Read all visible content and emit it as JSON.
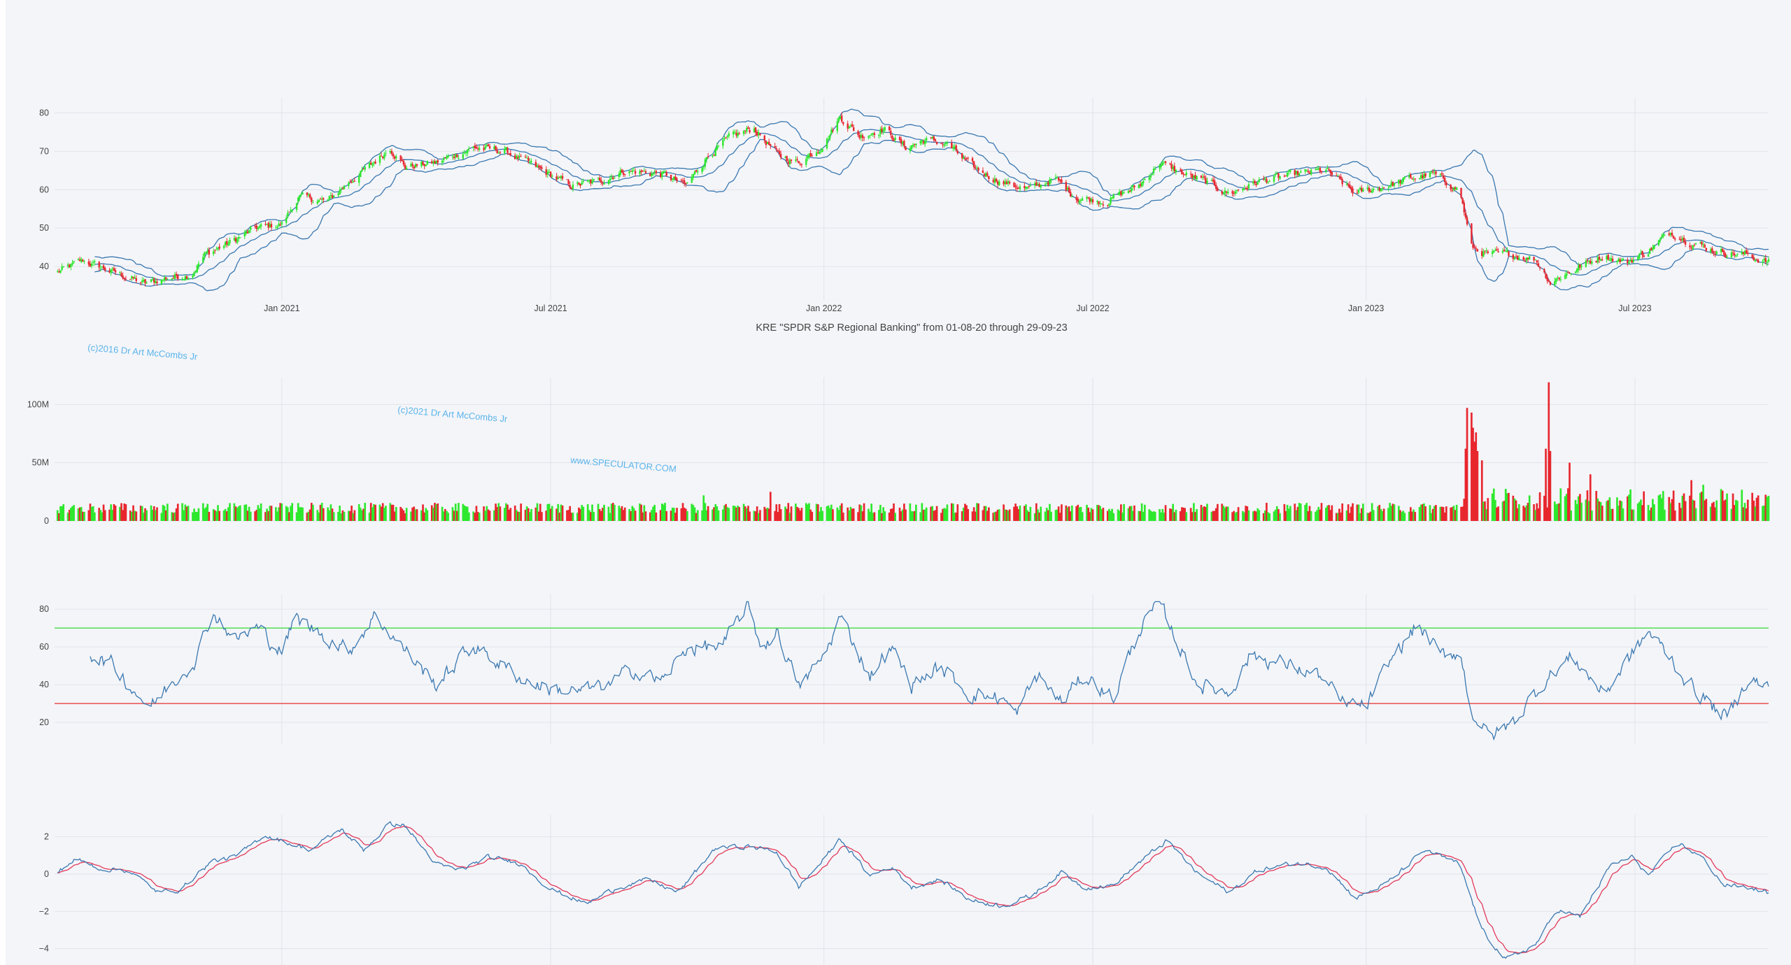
{
  "colors": {
    "background": "#f4f5f9",
    "grid": "#e2e4ea",
    "up": "#2ee82e",
    "down": "#e8262e",
    "line": "#3a78b0",
    "signal": "#e23a5a",
    "rsi_upper": "#5fe05f",
    "rsi_lower": "#e85a5a",
    "watermark": "#5ab4ea"
  },
  "watermarks": [
    "(c)2016 Dr Art McCombs Jr",
    "(c)2021 Dr Art McCombs Jr",
    "www.SPECULATOR.COM"
  ],
  "chart_data": [
    {
      "type": "candlestick",
      "title": "KRE \"SPDR S&P Regional Banking\" from 01-08-20 through 29-09-23",
      "x_range": [
        "2020-08-01",
        "2023-09-29"
      ],
      "x_ticks": [
        [
          "2021-01-01",
          "Jan 2021"
        ],
        [
          "2021-07-01",
          "Jul 2021"
        ],
        [
          "2022-01-01",
          "Jan 2022"
        ],
        [
          "2022-07-01",
          "Jul 2022"
        ],
        [
          "2023-01-01",
          "Jan 2023"
        ],
        [
          "2023-07-01",
          "Jul 2023"
        ]
      ],
      "ylim": [
        32,
        83
      ],
      "y_ticks": [
        40,
        50,
        60,
        70,
        80
      ],
      "overlay": "Bollinger Bands (upper, middle, lower)",
      "close_anchors": [
        [
          "2020-08-03",
          38.5
        ],
        [
          "2020-08-20",
          41.5
        ],
        [
          "2020-09-10",
          38.5
        ],
        [
          "2020-10-01",
          35.5
        ],
        [
          "2020-10-15",
          37.0
        ],
        [
          "2020-11-01",
          38.0
        ],
        [
          "2020-11-10",
          43.0
        ],
        [
          "2020-12-01",
          47.0
        ],
        [
          "2020-12-15",
          50.0
        ],
        [
          "2021-01-01",
          51.0
        ],
        [
          "2021-01-12",
          58.0
        ],
        [
          "2021-02-01",
          57.0
        ],
        [
          "2021-02-15",
          62.0
        ],
        [
          "2021-03-01",
          66.0
        ],
        [
          "2021-03-15",
          71.0
        ],
        [
          "2021-03-25",
          66.0
        ],
        [
          "2021-04-15",
          67.0
        ],
        [
          "2021-05-10",
          71.0
        ],
        [
          "2021-06-01",
          70.0
        ],
        [
          "2021-06-20",
          66.0
        ],
        [
          "2021-07-15",
          61.0
        ],
        [
          "2021-08-01",
          62.0
        ],
        [
          "2021-08-20",
          65.0
        ],
        [
          "2021-09-15",
          64.0
        ],
        [
          "2021-09-30",
          61.0
        ],
        [
          "2021-10-15",
          69.0
        ],
        [
          "2021-11-01",
          74.0
        ],
        [
          "2021-11-15",
          76.0
        ],
        [
          "2021-12-01",
          69.0
        ],
        [
          "2021-12-15",
          67.0
        ],
        [
          "2022-01-01",
          72.0
        ],
        [
          "2022-01-12",
          79.0
        ],
        [
          "2022-01-25",
          74.0
        ],
        [
          "2022-02-10",
          76.0
        ],
        [
          "2022-02-25",
          71.0
        ],
        [
          "2022-03-10",
          73.0
        ],
        [
          "2022-03-25",
          72.0
        ],
        [
          "2022-04-10",
          66.0
        ],
        [
          "2022-05-01",
          62.0
        ],
        [
          "2022-05-20",
          60.0
        ],
        [
          "2022-06-05",
          63.0
        ],
        [
          "2022-06-20",
          58.0
        ],
        [
          "2022-07-10",
          57.0
        ],
        [
          "2022-08-01",
          61.0
        ],
        [
          "2022-08-15",
          67.0
        ],
        [
          "2022-09-01",
          64.0
        ],
        [
          "2022-09-15",
          62.0
        ],
        [
          "2022-10-01",
          59.0
        ],
        [
          "2022-10-20",
          62.0
        ],
        [
          "2022-11-15",
          64.0
        ],
        [
          "2022-12-05",
          65.0
        ],
        [
          "2022-12-25",
          59.0
        ],
        [
          "2023-01-15",
          61.0
        ],
        [
          "2023-02-01",
          63.0
        ],
        [
          "2023-02-15",
          64.0
        ],
        [
          "2023-03-05",
          60.0
        ],
        [
          "2023-03-13",
          45.0
        ],
        [
          "2023-03-25",
          43.0
        ],
        [
          "2023-04-10",
          43.0
        ],
        [
          "2023-04-25",
          42.0
        ],
        [
          "2023-05-05",
          36.0
        ],
        [
          "2023-05-20",
          39.0
        ],
        [
          "2023-06-10",
          43.0
        ],
        [
          "2023-06-25",
          41.0
        ],
        [
          "2023-07-10",
          44.0
        ],
        [
          "2023-07-25",
          49.0
        ],
        [
          "2023-08-10",
          46.0
        ],
        [
          "2023-08-25",
          44.0
        ],
        [
          "2023-09-15",
          43.0
        ],
        [
          "2023-09-29",
          41.0
        ]
      ]
    },
    {
      "type": "bar",
      "name": "volume",
      "ylim": [
        0,
        120000000
      ],
      "y_ticks": [
        [
          0,
          "0"
        ],
        [
          50000000,
          "50M"
        ],
        [
          100000000,
          "100M"
        ]
      ],
      "baseline": 12000000,
      "spikes": [
        [
          "2021-11-26",
          25000000
        ],
        [
          "2021-10-12",
          22000000
        ],
        [
          "2023-03-09",
          62000000
        ],
        [
          "2023-03-10",
          97000000
        ],
        [
          "2023-03-13",
          93000000
        ],
        [
          "2023-03-14",
          80000000
        ],
        [
          "2023-03-15",
          68000000
        ],
        [
          "2023-03-16",
          76000000
        ],
        [
          "2023-03-17",
          60000000
        ],
        [
          "2023-03-20",
          52000000
        ],
        [
          "2023-05-02",
          62000000
        ],
        [
          "2023-05-04",
          119000000
        ],
        [
          "2023-05-05",
          60000000
        ],
        [
          "2023-05-18",
          50000000
        ],
        [
          "2023-06-01",
          40000000
        ],
        [
          "2023-08-08",
          35000000
        ]
      ]
    },
    {
      "type": "line",
      "name": "RSI",
      "ylim": [
        10,
        86
      ],
      "y_ticks": [
        20,
        40,
        60,
        80
      ],
      "reference_lines": [
        70,
        30
      ],
      "anchors": [
        [
          "2020-08-25",
          57
        ],
        [
          "2020-09-10",
          50
        ],
        [
          "2020-09-25",
          36
        ],
        [
          "2020-10-05",
          28
        ],
        [
          "2020-10-20",
          42
        ],
        [
          "2020-11-05",
          55
        ],
        [
          "2020-11-15",
          79
        ],
        [
          "2020-12-01",
          64
        ],
        [
          "2020-12-15",
          70
        ],
        [
          "2021-01-01",
          58
        ],
        [
          "2021-01-10",
          75
        ],
        [
          "2021-02-01",
          65
        ],
        [
          "2021-02-15",
          58
        ],
        [
          "2021-03-05",
          77
        ],
        [
          "2021-03-25",
          58
        ],
        [
          "2021-04-15",
          40
        ],
        [
          "2021-05-10",
          61
        ],
        [
          "2021-06-10",
          44
        ],
        [
          "2021-06-30",
          38
        ],
        [
          "2021-07-20",
          36
        ],
        [
          "2021-08-10",
          40
        ],
        [
          "2021-08-25",
          48
        ],
        [
          "2021-09-15",
          42
        ],
        [
          "2021-10-01",
          60
        ],
        [
          "2021-10-25",
          60
        ],
        [
          "2021-11-10",
          82
        ],
        [
          "2021-11-20",
          60
        ],
        [
          "2021-12-01",
          68
        ],
        [
          "2021-12-15",
          38
        ],
        [
          "2022-01-01",
          55
        ],
        [
          "2022-01-12",
          76
        ],
        [
          "2022-02-01",
          45
        ],
        [
          "2022-02-15",
          60
        ],
        [
          "2022-03-01",
          40
        ],
        [
          "2022-03-20",
          49
        ],
        [
          "2022-04-10",
          35
        ],
        [
          "2022-05-01",
          33
        ],
        [
          "2022-05-10",
          24
        ],
        [
          "2022-05-25",
          45
        ],
        [
          "2022-06-10",
          30
        ],
        [
          "2022-06-25",
          45
        ],
        [
          "2022-07-15",
          33
        ],
        [
          "2022-08-01",
          69
        ],
        [
          "2022-08-15",
          83
        ],
        [
          "2022-08-25",
          66
        ],
        [
          "2022-09-10",
          40
        ],
        [
          "2022-10-01",
          36
        ],
        [
          "2022-10-15",
          56
        ],
        [
          "2022-11-10",
          50
        ],
        [
          "2022-12-01",
          45
        ],
        [
          "2022-12-15",
          30
        ],
        [
          "2023-01-01",
          28
        ],
        [
          "2023-01-20",
          56
        ],
        [
          "2023-02-05",
          72
        ],
        [
          "2023-02-20",
          55
        ],
        [
          "2023-03-05",
          58
        ],
        [
          "2023-03-13",
          26
        ],
        [
          "2023-03-25",
          12
        ],
        [
          "2023-04-10",
          20
        ],
        [
          "2023-05-01",
          42
        ],
        [
          "2023-05-20",
          55
        ],
        [
          "2023-06-10",
          35
        ],
        [
          "2023-06-30",
          57
        ],
        [
          "2023-07-10",
          68
        ],
        [
          "2023-07-25",
          54
        ],
        [
          "2023-08-05",
          42
        ],
        [
          "2023-08-20",
          30
        ],
        [
          "2023-09-01",
          22
        ],
        [
          "2023-09-15",
          44
        ],
        [
          "2023-09-29",
          38
        ]
      ]
    },
    {
      "type": "line",
      "name": "oscillator with signal line",
      "ylim": [
        -4.8,
        3.0
      ],
      "y_ticks": [
        [
          2,
          "2"
        ],
        [
          0,
          "0"
        ],
        [
          -2,
          "−2"
        ],
        [
          -4,
          "−4"
        ]
      ],
      "anchors": [
        [
          "2020-08-03",
          0.1
        ],
        [
          "2020-08-15",
          0.8
        ],
        [
          "2020-09-01",
          0.3
        ],
        [
          "2020-09-20",
          0.2
        ],
        [
          "2020-10-10",
          -1.0
        ],
        [
          "2020-10-25",
          -0.8
        ],
        [
          "2020-11-15",
          0.7
        ],
        [
          "2020-12-01",
          0.9
        ],
        [
          "2020-12-20",
          2.1
        ],
        [
          "2021-01-20",
          1.3
        ],
        [
          "2021-02-10",
          2.4
        ],
        [
          "2021-02-25",
          1.3
        ],
        [
          "2021-03-15",
          2.7
        ],
        [
          "2021-03-25",
          2.6
        ],
        [
          "2021-04-15",
          0.5
        ],
        [
          "2021-05-01",
          0.2
        ],
        [
          "2021-05-20",
          0.9
        ],
        [
          "2021-06-10",
          0.6
        ],
        [
          "2021-07-01",
          -0.8
        ],
        [
          "2021-07-25",
          -1.6
        ],
        [
          "2021-08-15",
          -0.7
        ],
        [
          "2021-09-05",
          -0.3
        ],
        [
          "2021-09-25",
          -1.0
        ],
        [
          "2021-10-20",
          1.4
        ],
        [
          "2021-11-10",
          1.5
        ],
        [
          "2021-11-30",
          1.2
        ],
        [
          "2021-12-15",
          -0.7
        ],
        [
          "2022-01-01",
          0.8
        ],
        [
          "2022-01-12",
          1.9
        ],
        [
          "2022-02-01",
          -0.1
        ],
        [
          "2022-02-15",
          0.4
        ],
        [
          "2022-03-01",
          -0.7
        ],
        [
          "2022-03-20",
          -0.3
        ],
        [
          "2022-04-10",
          -1.4
        ],
        [
          "2022-05-01",
          -1.7
        ],
        [
          "2022-05-20",
          -1.2
        ],
        [
          "2022-06-10",
          0.1
        ],
        [
          "2022-06-25",
          -0.7
        ],
        [
          "2022-07-15",
          -0.6
        ],
        [
          "2022-08-01",
          0.6
        ],
        [
          "2022-08-20",
          1.8
        ],
        [
          "2022-09-10",
          0.0
        ],
        [
          "2022-10-01",
          -1.0
        ],
        [
          "2022-10-20",
          0.2
        ],
        [
          "2022-11-15",
          0.6
        ],
        [
          "2022-12-05",
          0.4
        ],
        [
          "2022-12-25",
          -1.3
        ],
        [
          "2023-01-15",
          -0.5
        ],
        [
          "2023-02-10",
          1.3
        ],
        [
          "2023-03-05",
          0.5
        ],
        [
          "2023-03-20",
          -3.0
        ],
        [
          "2023-04-05",
          -4.6
        ],
        [
          "2023-04-25",
          -3.8
        ],
        [
          "2023-05-10",
          -1.9
        ],
        [
          "2023-05-25",
          -2.3
        ],
        [
          "2023-06-15",
          0.5
        ],
        [
          "2023-06-30",
          0.9
        ],
        [
          "2023-07-10",
          -0.1
        ],
        [
          "2023-07-30",
          1.7
        ],
        [
          "2023-08-15",
          0.9
        ],
        [
          "2023-08-30",
          -0.6
        ],
        [
          "2023-09-15",
          -0.7
        ],
        [
          "2023-09-29",
          -1.0
        ]
      ]
    }
  ]
}
